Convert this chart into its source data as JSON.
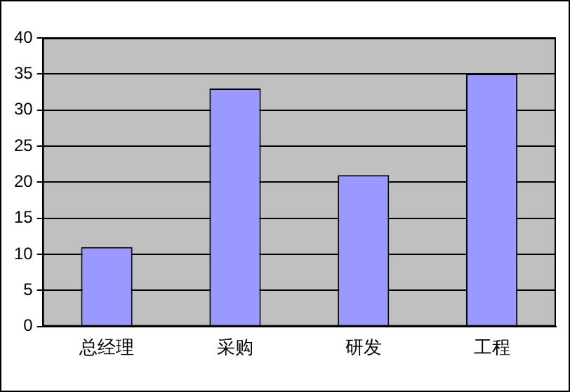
{
  "chart_data": {
    "type": "bar",
    "categories": [
      "总经理",
      "采购",
      "研发",
      "工程"
    ],
    "values": [
      11,
      33,
      21,
      35
    ],
    "color": "#9999ff",
    "ylim": [
      0,
      40
    ],
    "yticks": [
      0,
      5,
      10,
      15,
      20,
      25,
      30,
      35,
      40
    ],
    "grid": "y"
  }
}
